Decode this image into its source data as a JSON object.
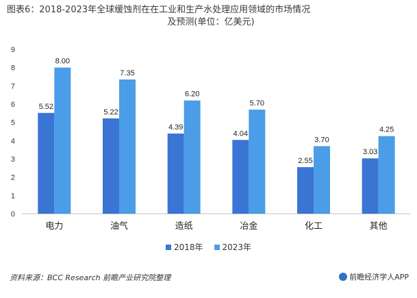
{
  "title": {
    "line1": "图表6：2018-2023年全球缓蚀剂在在工业和生产水处理应用领域的市场情况",
    "line2": "及预测(单位：亿美元)"
  },
  "colors": {
    "series_2018": "#3a75d4",
    "series_2023": "#4a9de6",
    "axis": "#bfbfbf",
    "brand": "#2f73c8"
  },
  "footer": {
    "source": "资料来源：BCC Research 前瞻产业研究院整理",
    "brand_icon": "qianzhan-logo-icon",
    "brand_text": "前瞻经济学人APP"
  },
  "chart_data": {
    "type": "bar",
    "categories": [
      "电力",
      "油气",
      "造纸",
      "冶金",
      "化工",
      "其他"
    ],
    "series": [
      {
        "name": "2018年",
        "values": [
          5.52,
          5.22,
          4.39,
          4.04,
          2.55,
          3.03
        ]
      },
      {
        "name": "2023年",
        "values": [
          8.0,
          7.35,
          6.2,
          5.7,
          3.7,
          4.25
        ]
      }
    ],
    "value_labels": [
      [
        "5.52",
        "5.22",
        "4.39",
        "4.04",
        "2.55",
        "3.03"
      ],
      [
        "8.00",
        "7.35",
        "6.20",
        "5.70",
        "3.70",
        "4.25"
      ]
    ],
    "ylim": [
      0,
      9
    ],
    "yticks": [
      "0",
      "1",
      "2",
      "3",
      "4",
      "5",
      "6",
      "7",
      "8",
      "9"
    ],
    "legend_position": "bottom",
    "grid": false
  }
}
